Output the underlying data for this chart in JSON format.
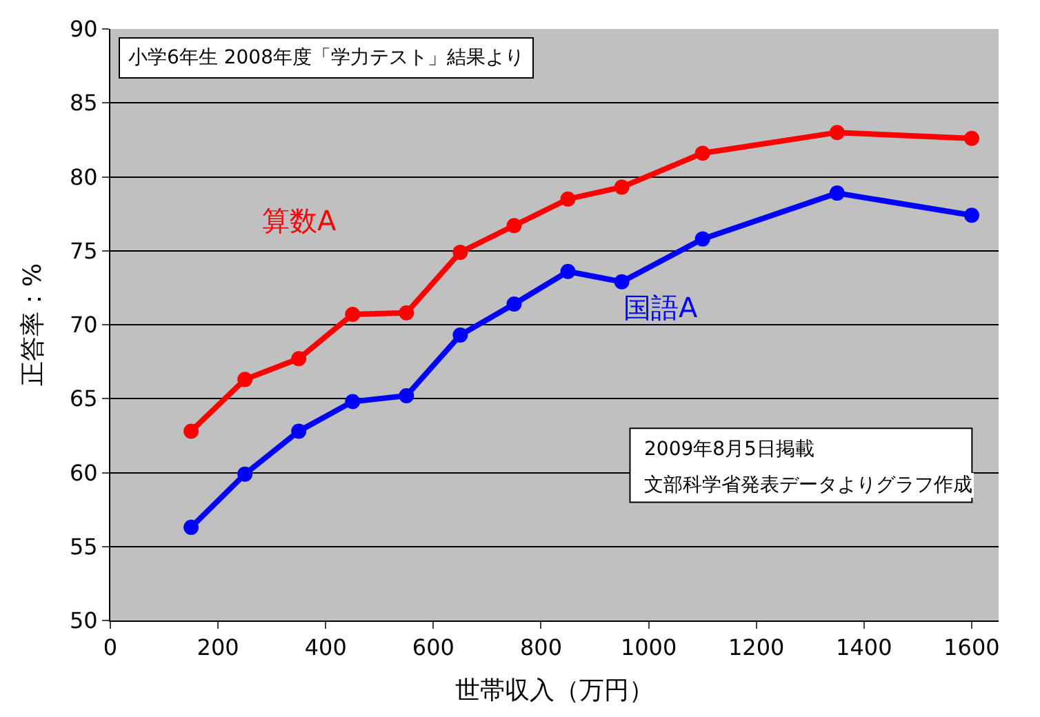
{
  "chart_data": {
    "type": "line",
    "xlabel": "世帯収入（万円）",
    "ylabel": "正答率：%",
    "annotations": [
      "小学6年生 2008年度「学力テスト」結果より",
      "2009年8月5日掲載",
      "文部科学省発表データよりグラフ作成"
    ],
    "x": [
      150,
      250,
      350,
      450,
      550,
      650,
      750,
      850,
      950,
      1100,
      1350,
      1600
    ],
    "series": [
      {
        "name": "算数A",
        "color": "#ff0000",
        "values": [
          62.8,
          66.3,
          67.7,
          70.7,
          70.8,
          74.9,
          76.7,
          78.5,
          79.3,
          81.6,
          83.0,
          82.6
        ]
      },
      {
        "name": "国語A",
        "color": "#0000ff",
        "values": [
          56.3,
          59.9,
          62.8,
          64.8,
          65.2,
          69.3,
          71.4,
          73.6,
          72.9,
          75.8,
          78.9,
          77.4
        ]
      }
    ],
    "xlim": [
      0,
      1650
    ],
    "xticks": [
      0,
      200,
      400,
      600,
      800,
      1000,
      1200,
      1400,
      1600
    ],
    "ylim": [
      50,
      90
    ],
    "yticks": [
      50,
      55,
      60,
      65,
      70,
      75,
      80,
      85,
      90
    ],
    "grid": "y",
    "legend": false,
    "marker": "circle",
    "line_style": "solid"
  }
}
